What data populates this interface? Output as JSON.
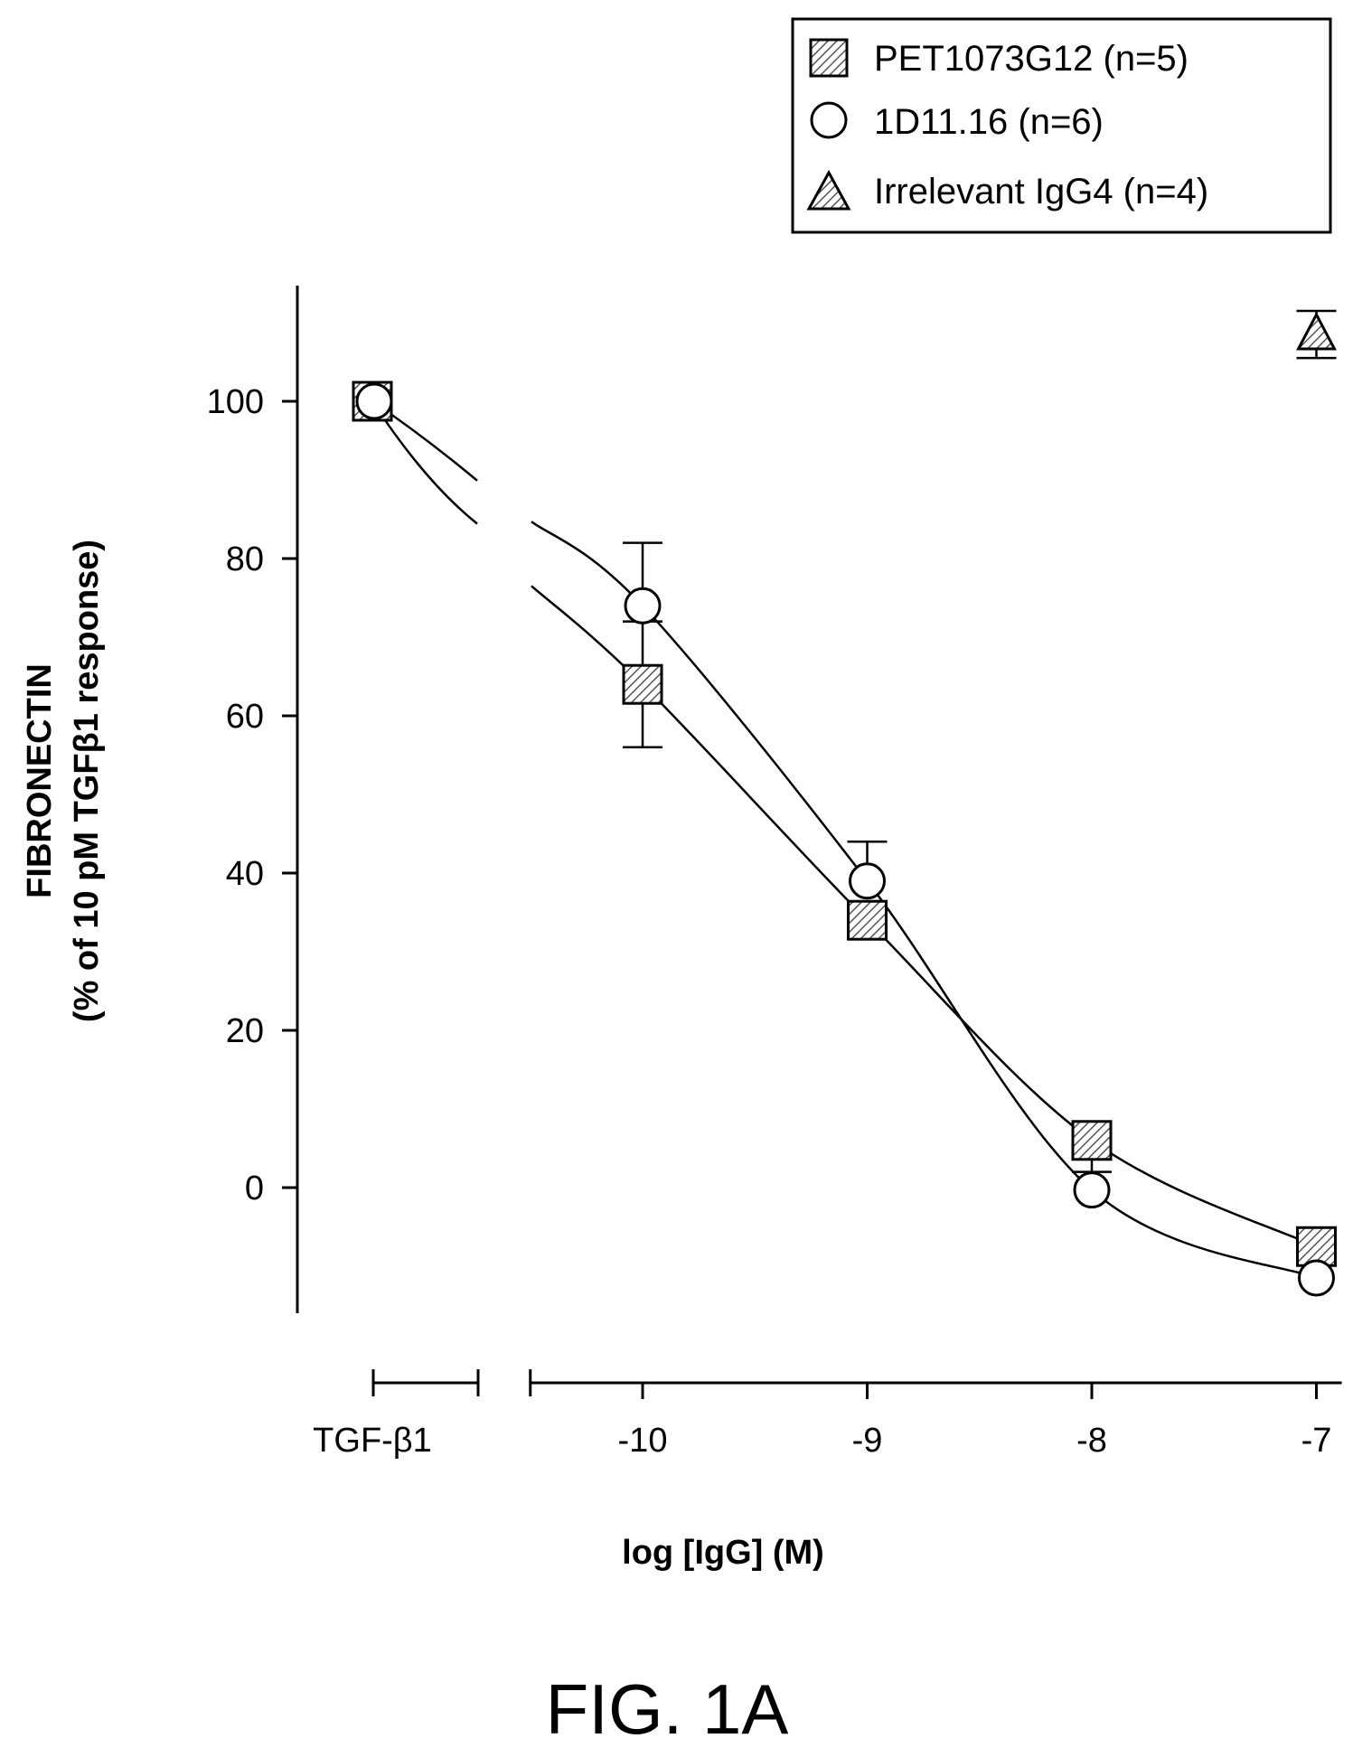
{
  "chart_data": {
    "type": "scatter",
    "ylabel_line1": "FIBRONECTIN",
    "ylabel_line2": "(% of 10 pM TGFβ1 response)",
    "xlabel": "log [IgG] (M)",
    "caption": "FIG. 1A",
    "control_label": "TGF-β1",
    "xlim": [
      -10.5,
      -7
    ],
    "ylim": [
      -15,
      115
    ],
    "x_ticks": [
      -10,
      -9,
      -8,
      -7
    ],
    "x_tick_labels": [
      "-10",
      "-9",
      "-8",
      "-7"
    ],
    "y_ticks": [
      0,
      20,
      40,
      60,
      80,
      100
    ],
    "y_tick_labels": [
      "0",
      "20",
      "40",
      "60",
      "80",
      "100"
    ],
    "legend_position": "top-right",
    "series": [
      {
        "name": "PET1073G12 (n=5)",
        "marker": "square-hatched",
        "control_value": 100,
        "x": [
          -10,
          -9,
          -8,
          -7
        ],
        "y": [
          64,
          34,
          6,
          -7.5
        ],
        "error": [
          8,
          0,
          4,
          2
        ],
        "fit": true
      },
      {
        "name": "1D11.16 (n=6)",
        "marker": "circle-open",
        "control_value": 100,
        "x": [
          -10,
          -9,
          -8,
          -7
        ],
        "y": [
          74,
          39,
          -0.3,
          -11.5
        ],
        "error": [
          8,
          5,
          0,
          0
        ],
        "fit": true
      },
      {
        "name": "Irrelevant IgG4 (n=4)",
        "marker": "triangle-hatched",
        "x": [
          -7
        ],
        "y": [
          108.5
        ],
        "error": [
          3
        ],
        "fit": false
      }
    ]
  }
}
